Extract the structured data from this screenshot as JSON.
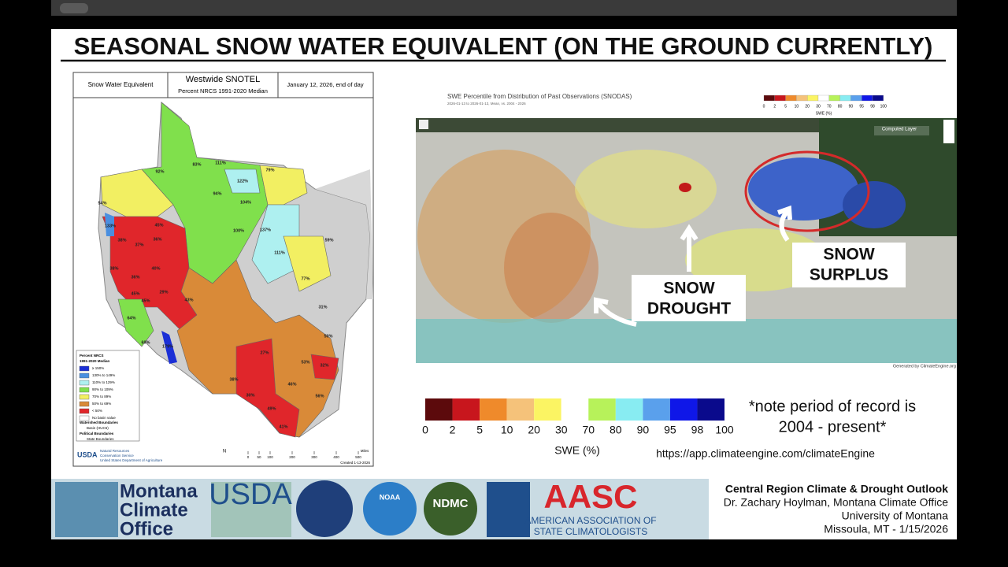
{
  "header": {
    "title": "SEASONAL SNOW WATER EQUIVALENT (ON THE GROUND CURRENTLY)"
  },
  "left_map": {
    "header": {
      "variable": "Snow Water Equivalent",
      "network": "Westwide SNOTEL",
      "subtitle": "Percent NRCS 1991-2020 Median",
      "date": "January 12, 2026, end of day"
    },
    "basin_labels": [
      "54%",
      "133%",
      "38%",
      "37%",
      "38%",
      "36%",
      "40%",
      "45%",
      "36%",
      "45%",
      "45%",
      "29%",
      "43%",
      "64%",
      "179%",
      "92%",
      "83%",
      "111%",
      "122%",
      "79%",
      "94%",
      "104%",
      "100%",
      "137%",
      "111%",
      "77%",
      "59%",
      "31%",
      "50%",
      "32%",
      "46%",
      "49%",
      "30%",
      "38%",
      "27%",
      "53%",
      "56%",
      "41%",
      "69%"
    ],
    "legend": {
      "title": [
        "Percent NRCS",
        "1991-2020 Median"
      ],
      "classes": [
        {
          "label": "≥ 150%",
          "color": "#1b2fd6"
        },
        {
          "label": "130% to 149%",
          "color": "#4a8fe0"
        },
        {
          "label": "110% to 129%",
          "color": "#aef0f0"
        },
        {
          "label": "90% to 109%",
          "color": "#80e04c"
        },
        {
          "label": "70% to 89%",
          "color": "#f2ef62"
        },
        {
          "label": "50% to 69%",
          "color": "#d98a38"
        },
        {
          "label": "< 50%",
          "color": "#e0262b"
        },
        {
          "label": "No basin value",
          "color": "#ffffff"
        }
      ],
      "watershed_title": "Watershed Boundaries",
      "watershed_item": "Basin (HUC6)",
      "political_title": "Political Boundaries",
      "political_item": "State Boundaries"
    },
    "agency": {
      "short": "USDA",
      "lines": [
        "Natural Resources",
        "Conservation Service",
        "United States Department of Agriculture"
      ]
    },
    "north": "N",
    "scale_ticks": [
      0,
      50,
      100,
      200,
      300,
      400,
      500
    ],
    "scale_unit": "Miles",
    "created": "Created 1-13-2026"
  },
  "right_map": {
    "title": "SWE Percentile from Distribution of Past Observations (SNODAS)",
    "subtitle": "2026-01-13 to 2026-01-13, Mean, vs. 2004 - 2026",
    "legend_ticks": [
      0,
      2,
      5,
      10,
      20,
      30,
      70,
      80,
      90,
      95,
      98,
      100
    ],
    "legend_unit": "SWE (%)",
    "layer_button": "Computed Layer",
    "callouts": [
      {
        "lines": [
          "SNOW",
          "DROUGHT"
        ]
      },
      {
        "lines": [
          "SNOW",
          "SURPLUS"
        ]
      }
    ],
    "credit": "Generated by ClimateEngine.org"
  },
  "swe_legend": {
    "colors": [
      "#5c0a0c",
      "#c8161d",
      "#ef8a2b",
      "#f5c27a",
      "#fbf463",
      "#ffffff",
      "#b7f25a",
      "#88ecf2",
      "#5aa0ec",
      "#0f17e8",
      "#0a0a8c"
    ],
    "ticks": [
      0,
      2,
      5,
      10,
      20,
      30,
      70,
      80,
      90,
      95,
      98,
      100
    ],
    "unit": "SWE (%)"
  },
  "note": [
    "*note period of record is",
    "2004 - present*"
  ],
  "url": "https://app.climateengine.com/climateEngine",
  "footer": {
    "logos": {
      "mco": [
        "Montana",
        "Climate",
        "Office"
      ],
      "usda": "USDA",
      "ndmc": "NDMC",
      "noaa": "NOAA",
      "aasc": "AASC",
      "aasc_name": [
        "AMERICAN ASSOCIATION OF",
        "STATE CLIMATOLOGISTS"
      ]
    },
    "lines": [
      "Central Region Climate & Drought Outlook",
      "Dr. Zachary Hoylman, Montana Climate Office",
      "University of Montana",
      "Missoula, MT - 1/15/2026"
    ]
  }
}
